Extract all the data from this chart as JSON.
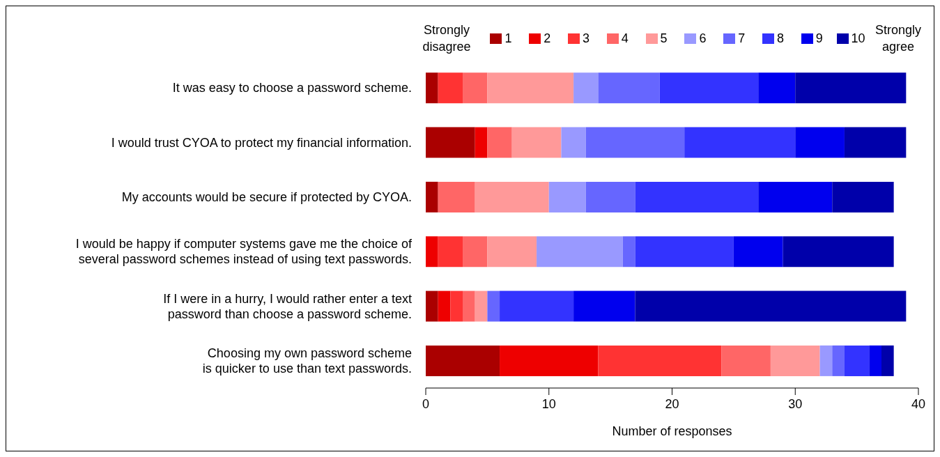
{
  "chart_data": {
    "type": "bar",
    "orientation": "horizontal",
    "stacked": true,
    "categories": [
      "It was easy to choose a password scheme.",
      "I would trust CYOA to protect my financial information.",
      "My accounts would be secure if protected by CYOA.",
      "I would be happy if computer systems gave me the choice of\nseveral password schemes instead of using text passwords.",
      "If I were in a hurry, I would rather enter a text\npassword than choose a password scheme.",
      "Choosing my own password scheme\nis quicker to use than text passwords."
    ],
    "series": [
      {
        "name": "1",
        "color": "#aa0000",
        "values": [
          1,
          4,
          1,
          0,
          1,
          6
        ]
      },
      {
        "name": "2",
        "color": "#ee0000",
        "values": [
          0,
          1,
          0,
          1,
          1,
          8
        ]
      },
      {
        "name": "3",
        "color": "#ff3333",
        "values": [
          2,
          0,
          0,
          2,
          1,
          10
        ]
      },
      {
        "name": "4",
        "color": "#ff6666",
        "values": [
          2,
          2,
          3,
          2,
          1,
          4
        ]
      },
      {
        "name": "5",
        "color": "#ff9999",
        "values": [
          7,
          4,
          6,
          4,
          1,
          4
        ]
      },
      {
        "name": "6",
        "color": "#9999ff",
        "values": [
          2,
          2,
          3,
          7,
          0,
          1
        ]
      },
      {
        "name": "7",
        "color": "#6666ff",
        "values": [
          5,
          8,
          4,
          1,
          1,
          1
        ]
      },
      {
        "name": "8",
        "color": "#3333ff",
        "values": [
          8,
          9,
          10,
          8,
          6,
          2
        ]
      },
      {
        "name": "9",
        "color": "#0000ee",
        "values": [
          3,
          4,
          6,
          4,
          5,
          1
        ]
      },
      {
        "name": "10",
        "color": "#0000aa",
        "values": [
          9,
          5,
          5,
          9,
          22,
          1
        ]
      }
    ],
    "xlim": [
      0,
      40
    ],
    "xticks": [
      0,
      10,
      20,
      30,
      40
    ],
    "xlabel": "Number of responses",
    "grid": false,
    "legend": "top right",
    "annotations": [
      "Strongly\ndisagree",
      "Strongly\nagree"
    ]
  }
}
